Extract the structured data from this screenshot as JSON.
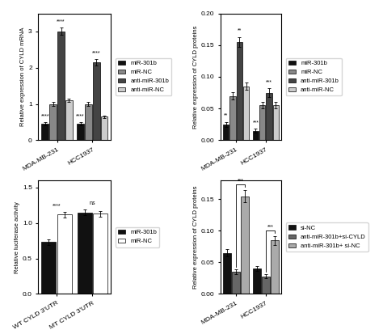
{
  "chart_data": [
    {
      "type": "bar",
      "ylabel": "Relative expression of CYLD mRNA",
      "categories": [
        "MDA-MB-231",
        "HCC1937"
      ],
      "series": [
        {
          "name": "miR-301b",
          "color": "#111111",
          "values": [
            0.45,
            0.45
          ],
          "errors": [
            0.04,
            0.04
          ]
        },
        {
          "name": "miR-NC",
          "color": "#888888",
          "values": [
            1.0,
            1.0
          ],
          "errors": [
            0.05,
            0.05
          ]
        },
        {
          "name": "anti-miR-301b",
          "color": "#444444",
          "values": [
            3.0,
            2.15
          ],
          "errors": [
            0.1,
            0.08
          ]
        },
        {
          "name": "anti-miR-NC",
          "color": "#cccccc",
          "values": [
            1.1,
            0.65
          ],
          "errors": [
            0.05,
            0.04
          ]
        }
      ],
      "annotations": [
        {
          "text": "****",
          "category": "MDA-MB-231",
          "series": "miR-301b"
        },
        {
          "text": "****",
          "category": "MDA-MB-231",
          "series": "anti-miR-301b"
        },
        {
          "text": "****",
          "category": "HCC1937",
          "series": "miR-301b"
        },
        {
          "text": "****",
          "category": "HCC1937",
          "series": "anti-miR-301b"
        }
      ],
      "ylim": [
        0,
        3.5
      ],
      "yticks": [
        0,
        1,
        2,
        3
      ],
      "legend": "right"
    },
    {
      "type": "bar",
      "ylabel": "Relative expression of CYLD proteins",
      "categories": [
        "MDA-MB-231",
        "HCC1937"
      ],
      "series": [
        {
          "name": "miR-301b",
          "color": "#111111",
          "values": [
            0.025,
            0.015
          ],
          "errors": [
            0.004,
            0.003
          ]
        },
        {
          "name": "miR-NC",
          "color": "#888888",
          "values": [
            0.07,
            0.055
          ],
          "errors": [
            0.006,
            0.005
          ]
        },
        {
          "name": "anti-miR-301b",
          "color": "#444444",
          "values": [
            0.155,
            0.075
          ],
          "errors": [
            0.008,
            0.007
          ]
        },
        {
          "name": "anti-miR-NC",
          "color": "#cccccc",
          "values": [
            0.085,
            0.055
          ],
          "errors": [
            0.006,
            0.005
          ]
        }
      ],
      "annotations": [
        {
          "text": "**",
          "category": "MDA-MB-231",
          "series": "miR-301b"
        },
        {
          "text": "**",
          "category": "MDA-MB-231",
          "series": "anti-miR-301b"
        },
        {
          "text": "***",
          "category": "HCC1937",
          "series": "miR-301b"
        },
        {
          "text": "***",
          "category": "HCC1937",
          "series": "anti-miR-301b"
        }
      ],
      "ylim": [
        0,
        0.2
      ],
      "yticks": [
        {
          "value": 0,
          "label": "0.00"
        },
        0.05,
        {
          "value": 0.1,
          "label": "0.10"
        },
        0.15,
        {
          "value": 0.2,
          "label": "0.20"
        }
      ],
      "legend": "right"
    },
    {
      "type": "bar",
      "ylabel": "Relative luciferase activity",
      "categories": [
        "WT CYLD 3'UTR",
        "MT CYLD 3'UTR"
      ],
      "series": [
        {
          "name": "miR-301b",
          "color": "#111111",
          "values": [
            0.73,
            1.15
          ],
          "errors": [
            0.04,
            0.04
          ]
        },
        {
          "name": "miR-NC",
          "color": "#ffffff",
          "values": [
            1.12,
            1.13
          ],
          "errors": [
            0.04,
            0.04
          ]
        }
      ],
      "annotations": [
        {
          "text": "****",
          "category": "WT CYLD 3'UTR"
        },
        {
          "text": "ns",
          "category": "MT CYLD 3'UTR"
        }
      ],
      "ylim": [
        0,
        1.6
      ],
      "yticks": [
        {
          "value": 0,
          "label": "0.0"
        },
        0.5,
        {
          "value": 1,
          "label": "1.0"
        },
        1.5
      ],
      "legend": "right"
    },
    {
      "type": "bar",
      "ylabel": "Relative expression of CYLD proteins",
      "categories": [
        "MDA-MB-231",
        "HCC1937"
      ],
      "series": [
        {
          "name": "si-NC",
          "color": "#111111",
          "values": [
            0.065,
            0.04
          ],
          "errors": [
            0.006,
            0.004
          ]
        },
        {
          "name": "anti-miR-301b+si-CYLD",
          "color": "#666666",
          "values": [
            0.035,
            0.028
          ],
          "errors": [
            0.004,
            0.003
          ]
        },
        {
          "name": "anti-miR-301b+ si-NC",
          "color": "#aaaaaa",
          "values": [
            0.155,
            0.085
          ],
          "errors": [
            0.01,
            0.007
          ]
        }
      ],
      "annotations": [
        {
          "text": "***",
          "category": "MDA-MB-231",
          "series": [
            "anti-miR-301b+si-CYLD",
            "anti-miR-301b+ si-NC"
          ]
        },
        {
          "text": "***",
          "category": "HCC1937",
          "series": [
            "anti-miR-301b+si-CYLD",
            "anti-miR-301b+ si-NC"
          ]
        }
      ],
      "ylim": [
        0,
        0.18
      ],
      "yticks": [
        {
          "value": 0,
          "label": "0.00"
        },
        0.05,
        {
          "value": 0.1,
          "label": "0.10"
        },
        0.15
      ],
      "legend": "right"
    }
  ]
}
